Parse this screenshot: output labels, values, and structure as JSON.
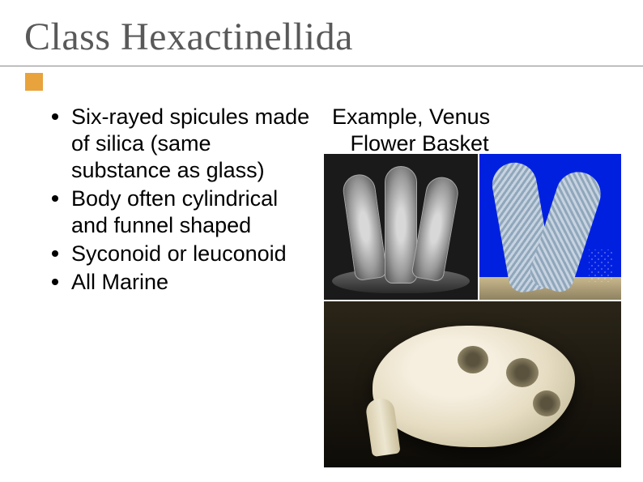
{
  "title": "Class Hexactinellida",
  "accent_color": "#e8a33d",
  "bullets": [
    "Six-rayed spicules made of silica (same substance as glass)",
    "Body often cylindrical and funnel shaped",
    "Syconoid or leuconoid",
    "All Marine"
  ],
  "example_heading_line1": "Example, Venus",
  "example_heading_line2": "Flower Basket",
  "text_fontsize_pt": 20,
  "title_fontsize_pt": 36,
  "title_color": "#595959",
  "body_text_color": "#000000",
  "background_color": "#ffffff",
  "images": [
    {
      "desc": "monochrome photo of glass sponge cluster",
      "bg": "#1a1a1a"
    },
    {
      "desc": "curved glass sponge on blue background",
      "bg": "#0020e0"
    },
    {
      "desc": "cream colored sponge with oscula on dark seabed",
      "bg": "#2b2518"
    }
  ]
}
